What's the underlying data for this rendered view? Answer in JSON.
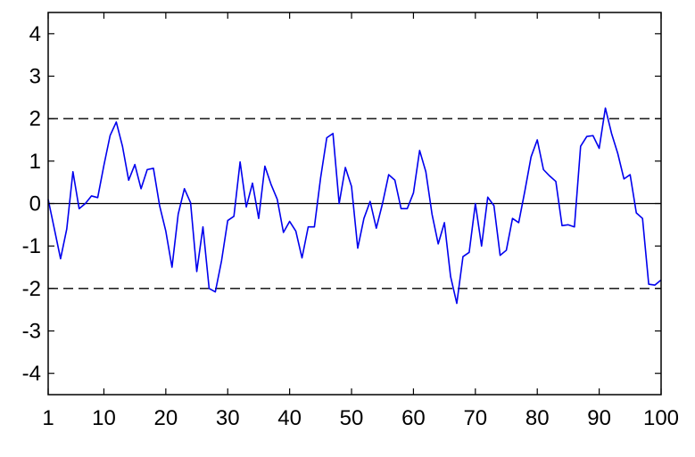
{
  "chart_data": {
    "type": "line",
    "title": "",
    "xlabel": "",
    "ylabel": "",
    "xlim": [
      1,
      100
    ],
    "ylim": [
      -4.5,
      4.5
    ],
    "x_ticks": [
      1,
      10,
      20,
      30,
      40,
      50,
      60,
      70,
      80,
      90,
      100
    ],
    "y_ticks": [
      4,
      3,
      2,
      1,
      0,
      -1,
      -2,
      -3,
      -4
    ],
    "x_tick_labels": [
      "1",
      "10",
      "20",
      "30",
      "40",
      "50",
      "60",
      "70",
      "80",
      "90",
      "100"
    ],
    "y_tick_labels": [
      "4",
      "3",
      "2",
      "1",
      "0",
      "-1",
      "-2",
      "-3",
      "-4"
    ],
    "grid": false,
    "reference_lines": [
      {
        "y": 2,
        "style": "dashed"
      },
      {
        "y": 0,
        "style": "solid"
      },
      {
        "y": -2,
        "style": "dashed"
      }
    ],
    "series": [
      {
        "color": "#0000ee",
        "x": [
          1,
          2,
          3,
          4,
          5,
          6,
          7,
          8,
          9,
          10,
          11,
          12,
          13,
          14,
          15,
          16,
          17,
          18,
          19,
          20,
          21,
          22,
          23,
          24,
          25,
          26,
          27,
          28,
          29,
          30,
          31,
          32,
          33,
          34,
          35,
          36,
          37,
          38,
          39,
          40,
          41,
          42,
          43,
          44,
          45,
          46,
          47,
          48,
          49,
          50,
          51,
          52,
          53,
          54,
          55,
          56,
          57,
          58,
          59,
          60,
          61,
          62,
          63,
          64,
          65,
          66,
          67,
          68,
          69,
          70,
          71,
          72,
          73,
          74,
          75,
          76,
          77,
          78,
          79,
          80,
          81,
          82,
          83,
          84,
          85,
          86,
          87,
          88,
          89,
          90,
          91,
          92,
          93,
          94,
          95,
          96,
          97,
          98,
          99,
          100
        ],
        "y": [
          0.1,
          -0.6,
          -1.3,
          -0.6,
          0.75,
          -0.12,
          0.0,
          0.18,
          0.14,
          0.9,
          1.6,
          1.92,
          1.35,
          0.55,
          0.92,
          0.35,
          0.8,
          0.83,
          -0.05,
          -0.65,
          -1.5,
          -0.25,
          0.35,
          0.02,
          -1.6,
          -0.55,
          -2.0,
          -2.08,
          -1.35,
          -0.4,
          -0.3,
          0.98,
          -0.08,
          0.48,
          -0.35,
          0.88,
          0.45,
          0.1,
          -0.68,
          -0.42,
          -0.65,
          -1.28,
          -0.55,
          -0.55,
          0.6,
          1.55,
          1.65,
          0.0,
          0.85,
          0.4,
          -1.05,
          -0.35,
          0.05,
          -0.58,
          0.0,
          0.68,
          0.55,
          -0.12,
          -0.12,
          0.25,
          1.25,
          0.75,
          -0.25,
          -0.95,
          -0.45,
          -1.72,
          -2.35,
          -1.25,
          -1.15,
          0.0,
          -1.0,
          0.15,
          -0.05,
          -1.22,
          -1.1,
          -0.35,
          -0.45,
          0.3,
          1.1,
          1.5,
          0.8,
          0.65,
          0.52,
          -0.52,
          -0.5,
          -0.55,
          1.35,
          1.58,
          1.6,
          1.3,
          2.25,
          1.65,
          1.18,
          0.58,
          0.68,
          -0.22,
          -0.35,
          -1.9,
          -1.92,
          -1.8
        ]
      }
    ]
  }
}
